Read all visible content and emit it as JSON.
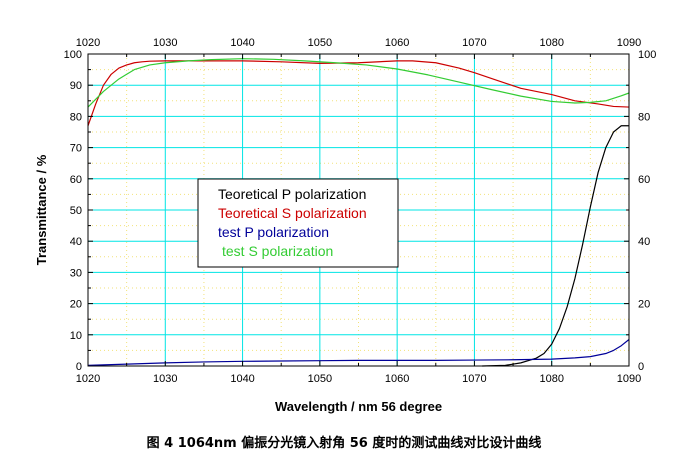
{
  "chart_data": {
    "type": "line",
    "xlabel": "Wavelength / nm 56 degree",
    "ylabel": "Transmittance / %",
    "xlim": [
      1020,
      1090
    ],
    "ylim": [
      0,
      100
    ],
    "y2lim": [
      0,
      100
    ],
    "x_ticks": [
      1020,
      1030,
      1040,
      1050,
      1060,
      1070,
      1080,
      1090
    ],
    "y_ticks": [
      0,
      10,
      20,
      30,
      40,
      50,
      60,
      70,
      80,
      90,
      100
    ],
    "y2_ticks": [
      0,
      20,
      40,
      60,
      80,
      100
    ],
    "top_axis_ticks": true,
    "grid": true,
    "legend_position": "center-left",
    "series": [
      {
        "name": "Teoretical P polarization",
        "color": "#000000",
        "x": [
          1071,
          1074,
          1076,
          1078,
          1079,
          1080,
          1081,
          1082,
          1083,
          1084,
          1085,
          1086,
          1087,
          1088,
          1089,
          1090
        ],
        "y": [
          0,
          0.2,
          1,
          2.5,
          4,
          7,
          12,
          19,
          28,
          39,
          51,
          62,
          70,
          75,
          77,
          77
        ]
      },
      {
        "name": "Teoretical S polarization",
        "color": "#cc0000",
        "x": [
          1020,
          1021,
          1022,
          1023,
          1024,
          1025,
          1026,
          1027,
          1028,
          1030,
          1032,
          1035,
          1040,
          1045,
          1050,
          1055,
          1060,
          1062,
          1065,
          1068,
          1070,
          1073,
          1076,
          1080,
          1083,
          1086,
          1088,
          1090
        ],
        "y": [
          77,
          84,
          90,
          93.5,
          95.5,
          96.5,
          97.2,
          97.5,
          97.7,
          97.8,
          97.8,
          97.8,
          97.8,
          97.5,
          97,
          97.2,
          97.8,
          97.8,
          97.2,
          95.5,
          94,
          91.5,
          89,
          87,
          85,
          84,
          83.2,
          83
        ]
      },
      {
        "name": "test P polarization",
        "color": "#000099",
        "x": [
          1020,
          1025,
          1030,
          1035,
          1040,
          1045,
          1050,
          1055,
          1060,
          1065,
          1070,
          1075,
          1080,
          1083,
          1085,
          1087,
          1088,
          1089,
          1090
        ],
        "y": [
          0.2,
          0.6,
          1,
          1.3,
          1.5,
          1.6,
          1.7,
          1.8,
          1.8,
          1.8,
          1.9,
          2,
          2.2,
          2.6,
          3,
          4,
          5,
          6.5,
          8.5
        ]
      },
      {
        "name": "test S polarization",
        "color": "#33cc33",
        "x": [
          1020,
          1022,
          1024,
          1026,
          1028,
          1030,
          1033,
          1036,
          1040,
          1044,
          1048,
          1052,
          1056,
          1060,
          1064,
          1068,
          1072,
          1076,
          1080,
          1083,
          1085,
          1087,
          1088,
          1089,
          1090
        ],
        "y": [
          83,
          88,
          92,
          95,
          96.5,
          97.2,
          97.8,
          98.2,
          98.5,
          98.3,
          97.8,
          97.2,
          96.5,
          95.2,
          93.3,
          91,
          88.7,
          86.5,
          84.8,
          84.3,
          84.5,
          85,
          85.8,
          86.6,
          87.5
        ]
      }
    ]
  },
  "caption": "图 4 1064nm 偏振分光镜入射角 56 度时的测试曲线对比设计曲线"
}
